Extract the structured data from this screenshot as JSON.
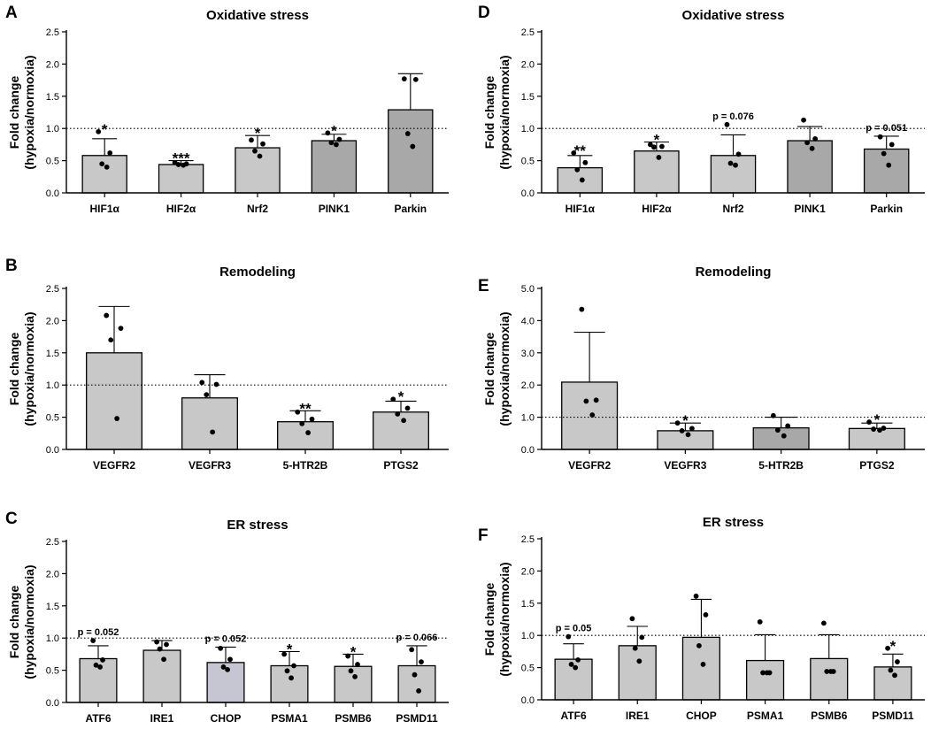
{
  "figure": {
    "panels_order": [
      "A",
      "B",
      "C",
      "D",
      "E",
      "F"
    ],
    "ylabel_line1": "Fold change",
    "ylabel_line2": "(hypoxia/normoxia)"
  },
  "colors": {
    "light_bar": "#c8c8c8",
    "dark_bar": "#a8a8a8",
    "lavender_bar": "#c6c6d2",
    "bar_edge": "#000000",
    "reference_line": "#000000"
  },
  "chart_data": [
    {
      "id": "A",
      "letter": "A",
      "type": "bar",
      "title": "Oxidative stress",
      "ylabel": "Fold change (hypoxia/normoxia)",
      "ylim": [
        0,
        2.5
      ],
      "yticks": [
        "0.0",
        "0.5",
        "1.0",
        "1.5",
        "2.0",
        "2.5"
      ],
      "reference_line": 1.0,
      "categories": [
        "HIF1α",
        "HIF2α",
        "Nrf2",
        "PINK1",
        "Parkin"
      ],
      "values": [
        0.58,
        0.44,
        0.7,
        0.81,
        1.29
      ],
      "error": [
        0.26,
        0.06,
        0.19,
        0.1,
        0.56
      ],
      "fills": [
        "light",
        "light",
        "light",
        "dark",
        "dark"
      ],
      "points": [
        [
          0.95,
          0.62,
          0.45,
          0.4
        ],
        [
          0.47,
          0.45,
          0.44,
          0.43
        ],
        [
          0.82,
          0.76,
          0.65,
          0.57
        ],
        [
          0.93,
          0.83,
          0.78,
          0.75
        ],
        [
          1.77,
          1.76,
          0.92,
          0.72
        ]
      ],
      "annotations": [
        "*",
        "***",
        "*",
        "*",
        ""
      ]
    },
    {
      "id": "B",
      "letter": "B",
      "type": "bar",
      "title": "Remodeling",
      "ylabel": "Fold change (hypoxia/normoxia)",
      "ylim": [
        0,
        2.5
      ],
      "yticks": [
        "0.0",
        "0.5",
        "1.0",
        "1.5",
        "2.0",
        "2.5"
      ],
      "reference_line": 1.0,
      "categories": [
        "VEGFR2",
        "VEGFR3",
        "5-HTR2B",
        "PTGS2"
      ],
      "values": [
        1.5,
        0.8,
        0.43,
        0.58
      ],
      "error": [
        0.72,
        0.36,
        0.17,
        0.17
      ],
      "fills": [
        "light",
        "light",
        "light",
        "light"
      ],
      "points": [
        [
          2.08,
          1.88,
          1.7,
          0.48
        ],
        [
          1.04,
          1.01,
          0.85,
          0.27
        ],
        [
          0.58,
          0.47,
          0.4,
          0.26
        ],
        [
          0.78,
          0.64,
          0.55,
          0.45
        ]
      ],
      "annotations": [
        "",
        "",
        "**",
        "*"
      ]
    },
    {
      "id": "C",
      "letter": "C",
      "type": "bar",
      "title": "ER stress",
      "ylabel": "Fold change (hypoxia/normoxia)",
      "ylim": [
        0,
        2.5
      ],
      "yticks": [
        "0.0",
        "0.5",
        "1.0",
        "1.5",
        "2.0",
        "2.5"
      ],
      "reference_line": 1.0,
      "categories": [
        "ATF6",
        "IRE1",
        "CHOP",
        "PSMA1",
        "PSMB6",
        "PSMD11"
      ],
      "values": [
        0.68,
        0.81,
        0.62,
        0.57,
        0.56,
        0.57
      ],
      "error": [
        0.2,
        0.15,
        0.24,
        0.22,
        0.19,
        0.31
      ],
      "fills": [
        "light",
        "light",
        "lavender",
        "light",
        "light",
        "light"
      ],
      "points": [
        [
          0.96,
          0.66,
          0.58,
          0.55
        ],
        [
          0.94,
          0.9,
          0.83,
          0.67
        ],
        [
          0.84,
          0.67,
          0.55,
          0.51
        ],
        [
          0.75,
          0.57,
          0.49,
          0.38
        ],
        [
          0.72,
          0.59,
          0.49,
          0.4
        ],
        [
          0.82,
          0.63,
          0.43,
          0.18
        ]
      ],
      "annotations": [
        "p = 0.052",
        "",
        "p = 0.052",
        "*",
        "*",
        "p = 0.066"
      ]
    },
    {
      "id": "D",
      "letter": "D",
      "type": "bar",
      "title": "Oxidative stress",
      "ylabel": "Fold change (hypoxia/normoxia)",
      "ylim": [
        0,
        2.5
      ],
      "yticks": [
        "0.0",
        "0.5",
        "1.0",
        "1.5",
        "2.0",
        "2.5"
      ],
      "reference_line": 1.0,
      "categories": [
        "HIF1α",
        "HIF2α",
        "Nrf2",
        "PINK1",
        "Parkin"
      ],
      "values": [
        0.39,
        0.65,
        0.58,
        0.81,
        0.68
      ],
      "error": [
        0.19,
        0.14,
        0.32,
        0.22,
        0.2
      ],
      "fills": [
        "light",
        "light",
        "light",
        "dark",
        "dark"
      ],
      "points": [
        [
          0.62,
          0.47,
          0.36,
          0.2
        ],
        [
          0.75,
          0.72,
          0.71,
          0.55
        ],
        [
          1.06,
          0.6,
          0.46,
          0.43
        ],
        [
          1.13,
          0.84,
          0.78,
          0.69
        ],
        [
          0.87,
          0.75,
          0.61,
          0.43
        ]
      ],
      "annotations": [
        "**",
        "*",
        "p = 0.076",
        "",
        "p = 0.051"
      ]
    },
    {
      "id": "E",
      "letter": "E",
      "type": "bar",
      "title": "Remodeling",
      "ylabel": "Fold change (hypoxia/normoxia)",
      "ylim": [
        0,
        5.0
      ],
      "yticks": [
        "0.0",
        "1.0",
        "2.0",
        "3.0",
        "4.0",
        "5.0"
      ],
      "reference_line": 1.0,
      "categories": [
        "VEGFR2",
        "VEGFR3",
        "5-HTR2B",
        "PTGS2"
      ],
      "values": [
        2.09,
        0.58,
        0.67,
        0.65
      ],
      "error": [
        1.55,
        0.24,
        0.33,
        0.17
      ],
      "fills": [
        "light",
        "light",
        "dark",
        "light"
      ],
      "points": [
        [
          4.35,
          1.53,
          1.5,
          1.07
        ],
        [
          0.82,
          0.65,
          0.58,
          0.46
        ],
        [
          1.05,
          0.73,
          0.6,
          0.42
        ],
        [
          0.85,
          0.66,
          0.63,
          0.6
        ]
      ],
      "annotations": [
        "",
        "*",
        "",
        "*"
      ]
    },
    {
      "id": "F",
      "letter": "F",
      "type": "bar",
      "title": "ER stress",
      "ylabel": "Fold change (hypoxia/normoxia)",
      "ylim": [
        0,
        2.5
      ],
      "yticks": [
        "0.0",
        "0.5",
        "1.0",
        "1.5",
        "2.0",
        "2.5"
      ],
      "reference_line": 1.0,
      "categories": [
        "ATF6",
        "IRE1",
        "CHOP",
        "PSMA1",
        "PSMB6",
        "PSMD11"
      ],
      "values": [
        0.63,
        0.84,
        0.97,
        0.61,
        0.64,
        0.51
      ],
      "error": [
        0.24,
        0.3,
        0.59,
        0.4,
        0.37,
        0.2
      ],
      "fills": [
        "light",
        "light",
        "light",
        "light",
        "light",
        "light"
      ],
      "points": [
        [
          0.98,
          0.62,
          0.55,
          0.5
        ],
        [
          1.26,
          0.97,
          0.8,
          0.6
        ],
        [
          1.61,
          1.32,
          0.84,
          0.55
        ],
        [
          1.21,
          0.42,
          0.42,
          0.42
        ],
        [
          1.19,
          0.44,
          0.44,
          0.44
        ],
        [
          0.8,
          0.59,
          0.46,
          0.38
        ]
      ],
      "annotations": [
        "p = 0.05",
        "",
        "",
        "",
        "",
        "*"
      ]
    }
  ]
}
